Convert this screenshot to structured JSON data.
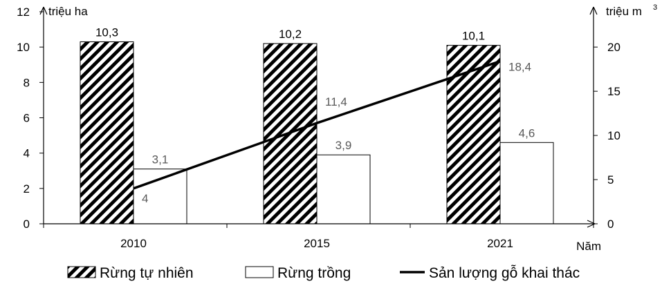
{
  "chart_data": {
    "type": "bar",
    "categories": [
      "2010",
      "2015",
      "2021"
    ],
    "series": [
      {
        "name": "Rừng tự nhiên",
        "kind": "bar",
        "axis": "left",
        "pattern": "diagonal-hatch",
        "values": [
          10.3,
          10.2,
          10.1
        ],
        "labels": [
          "10,3",
          "10,2",
          "10,1"
        ]
      },
      {
        "name": "Rừng trồng",
        "kind": "bar",
        "axis": "left",
        "pattern": "none",
        "values": [
          3.1,
          3.9,
          4.6
        ],
        "labels": [
          "3,1",
          "3,9",
          "4,6"
        ]
      },
      {
        "name": "Sản lượng gỗ khai thác",
        "kind": "line",
        "axis": "right",
        "values": [
          4,
          11.4,
          18.4
        ],
        "labels": [
          "4",
          "11,4",
          "18,4"
        ]
      }
    ],
    "left_axis": {
      "title": "triệu ha",
      "ylim": [
        0,
        12
      ],
      "ticks": [
        "0",
        "2",
        "4",
        "6",
        "8",
        "10",
        "12"
      ]
    },
    "right_axis": {
      "title": "triệu m",
      "superscript": "3",
      "ylim": [
        0,
        24
      ],
      "ticks": [
        "0",
        "5",
        "10",
        "15",
        "20"
      ]
    },
    "x_axis": {
      "title": "Năm"
    },
    "grid": false,
    "legend_position": "bottom",
    "colors": {
      "ink": "#000000",
      "label": "#595959",
      "background": "#ffffff"
    }
  }
}
